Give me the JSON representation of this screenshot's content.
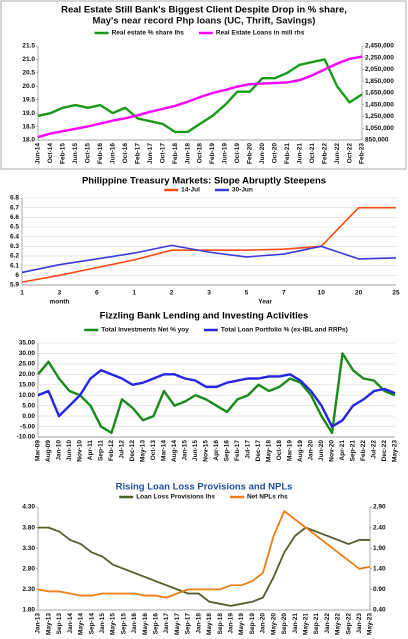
{
  "chart_data": [
    {
      "type": "line",
      "title": "Real Estate Still Bank's Biggest Client Despite Drop in % share,",
      "subtitle": "May's near record Php loans (UC, Thrift, Savings)",
      "categories": [
        "Jun-14",
        "Oct-14",
        "Feb-15",
        "Jun-15",
        "Oct-15",
        "Feb-16",
        "Jun-16",
        "Oct-16",
        "Feb-17",
        "Jun-17",
        "Oct-17",
        "Feb-18",
        "Jun-18",
        "Oct-18",
        "Feb-19",
        "Jun-19",
        "Oct-19",
        "Feb-20",
        "Jun-20",
        "Oct-20",
        "Feb-21",
        "Jun-21",
        "Oct-21",
        "Feb-22",
        "Jun-22",
        "Oct-22",
        "Feb-23"
      ],
      "series": [
        {
          "name": "Real estate % share lhs",
          "color": "#1a9a1a",
          "values": [
            18.9,
            19.0,
            19.2,
            19.3,
            19.2,
            19.3,
            19.0,
            19.2,
            18.8,
            18.7,
            18.6,
            18.3,
            18.3,
            18.6,
            18.9,
            19.3,
            19.8,
            19.8,
            20.3,
            20.3,
            20.5,
            20.8,
            20.9,
            21.0,
            20.0,
            19.4,
            19.7
          ]
        },
        {
          "name": "Real Estate Loans in mill rhs",
          "color": "#ff00ff",
          "axis": "y2",
          "values": [
            900000,
            960000,
            1000000,
            1040000,
            1080000,
            1130000,
            1180000,
            1220000,
            1270000,
            1330000,
            1380000,
            1430000,
            1500000,
            1580000,
            1650000,
            1700000,
            1760000,
            1800000,
            1810000,
            1820000,
            1830000,
            1870000,
            1950000,
            2050000,
            2150000,
            2230000,
            2270000
          ]
        }
      ],
      "ylim": [
        18,
        21.5
      ],
      "yticks": [
        {
          "value": 18,
          "label": "18.0"
        },
        {
          "value": 18.5,
          "label": "18.5"
        },
        {
          "value": 19,
          "label": "19.0"
        },
        {
          "value": 19.5,
          "label": "19.5"
        },
        {
          "value": 20,
          "label": "20.0"
        },
        {
          "value": 20.5,
          "label": "20.5"
        },
        {
          "value": 21,
          "label": "21.0"
        },
        {
          "value": 21.5,
          "label": "21.5"
        }
      ],
      "y2lim": [
        850000,
        2450000
      ],
      "y2ticks": [
        {
          "value": 850000,
          "label": "850,000"
        },
        {
          "value": 1050000,
          "label": "1,050,000"
        },
        {
          "value": 1250000,
          "label": "1,250,000"
        },
        {
          "value": 1450000,
          "label": "1,450,000"
        },
        {
          "value": 1650000,
          "label": "1,650,000"
        },
        {
          "value": 1850000,
          "label": "1,850,000"
        },
        {
          "value": 2050000,
          "label": "2,050,000"
        },
        {
          "value": 2250000,
          "label": "2,250,000"
        },
        {
          "value": 2450000,
          "label": "2,450,000"
        }
      ],
      "grid": false
    },
    {
      "type": "line",
      "title": "Philippine Treasury Markets: Slope Abruptly Steepens",
      "categories": [
        "1",
        "3",
        "6",
        "1",
        "2",
        "3",
        "5",
        "7",
        "10",
        "20",
        "25"
      ],
      "x_groups": [
        "month",
        "Year"
      ],
      "series": [
        {
          "name": "14-Jul",
          "color": "#ff4a12",
          "values": [
            5.93,
            6.0,
            6.08,
            6.16,
            6.26,
            6.26,
            6.26,
            6.27,
            6.3,
            6.7,
            6.7
          ]
        },
        {
          "name": "30-Jun",
          "color": "#3a3ad8",
          "values": [
            6.03,
            6.11,
            6.17,
            6.23,
            6.31,
            6.24,
            6.19,
            6.22,
            6.3,
            6.17,
            6.18
          ]
        }
      ],
      "ylim": [
        5.9,
        6.8
      ],
      "yticks": [
        5.9,
        6,
        6.1,
        6.2,
        6.3,
        6.4,
        6.5,
        6.6,
        6.7,
        6.8
      ],
      "grid": true
    },
    {
      "type": "line",
      "title": "Fizzling Bank Lending and Investing Activities",
      "categories": [
        "Mar-09",
        "Aug-09",
        "Jan-10",
        "Jun-10",
        "Nov-10",
        "Apr-11",
        "Sep-11",
        "Feb-12",
        "Jul-12",
        "Dec-12",
        "May-13",
        "Oct-13",
        "Mar-14",
        "Aug-14",
        "Jan-15",
        "Jun-15",
        "Nov-15",
        "Apr-16",
        "Sep-16",
        "Feb-17",
        "Jul-17",
        "Dec-17",
        "May-18",
        "Oct-18",
        "Mar-19",
        "Aug-19",
        "Jan-20",
        "Jun-20",
        "Nov-20",
        "Apr-21",
        "Sep-21",
        "Feb-22",
        "Jul-22",
        "Dec-22",
        "May-23"
      ],
      "series": [
        {
          "name": "Total Investments Net % yoy",
          "color": "#1a8a1a",
          "values": [
            20,
            26,
            18,
            12,
            10,
            5,
            -5,
            -8,
            8,
            4,
            -2,
            0,
            12,
            5,
            7,
            10,
            8,
            5,
            2,
            8,
            10,
            15,
            12,
            14,
            18,
            16,
            10,
            0,
            -8,
            30,
            22,
            18,
            17,
            12,
            10
          ]
        },
        {
          "name": "Total Loan Portfolio % (ex-IBL and RRPs)",
          "color": "#2626e0",
          "values": [
            10,
            12,
            0,
            5,
            10,
            18,
            22,
            20,
            18,
            15,
            16,
            18,
            20,
            20,
            18,
            17,
            14,
            14,
            16,
            17,
            18,
            18,
            19,
            19,
            20,
            17,
            12,
            5,
            -5,
            -2,
            5,
            8,
            12,
            13,
            11
          ]
        }
      ],
      "ylim": [
        -10,
        35
      ],
      "yticks": [
        {
          "value": -10,
          "label": "-10.00"
        },
        {
          "value": -5,
          "label": "-5.00"
        },
        {
          "value": 0,
          "label": "0.00"
        },
        {
          "value": 5,
          "label": "5.00"
        },
        {
          "value": 10,
          "label": "10.00"
        },
        {
          "value": 15,
          "label": "15.00"
        },
        {
          "value": 20,
          "label": "20.00"
        },
        {
          "value": 25,
          "label": "25.00"
        },
        {
          "value": 30,
          "label": "30.00"
        },
        {
          "value": 35,
          "label": "35.00"
        }
      ],
      "grid": true
    },
    {
      "type": "line",
      "title": "Rising Loan Loss Provisions and NPLs",
      "categories": [
        "Jan-13",
        "May-13",
        "Sep-13",
        "Jan-14",
        "May-14",
        "Sep-14",
        "Jan-15",
        "May-15",
        "Sep-15",
        "Jan-16",
        "May-16",
        "Sep-16",
        "Jan-17",
        "May-17",
        "Sep-17",
        "Jan-18",
        "May-18",
        "Sep-18",
        "Jan-19",
        "May-19",
        "Sep-19",
        "Jan-20",
        "May-20",
        "Sep-20",
        "Jan-21",
        "May-21",
        "Sep-21",
        "Jan-22",
        "May-22",
        "Sep-22",
        "Jan-23",
        "May-23"
      ],
      "series": [
        {
          "name": "Loan Loss Provisions lhs",
          "color": "#4f5f2a",
          "values": [
            3.8,
            3.8,
            3.7,
            3.5,
            3.4,
            3.2,
            3.1,
            2.9,
            2.8,
            2.7,
            2.6,
            2.5,
            2.4,
            2.3,
            2.2,
            2.2,
            2.0,
            1.95,
            1.9,
            1.95,
            2.0,
            2.1,
            2.6,
            3.2,
            3.6,
            3.8,
            3.7,
            3.6,
            3.5,
            3.4,
            3.5,
            3.5
          ]
        },
        {
          "name": "Net NPLs rhs",
          "color": "#ef7d17",
          "axis": "y2",
          "values": [
            0.9,
            0.85,
            0.85,
            0.8,
            0.75,
            0.75,
            0.8,
            0.8,
            0.8,
            0.8,
            0.75,
            0.75,
            0.7,
            0.8,
            0.9,
            0.9,
            0.9,
            0.9,
            1.0,
            1.0,
            1.1,
            1.3,
            2.2,
            2.8,
            2.6,
            2.4,
            2.2,
            2.0,
            1.8,
            1.6,
            1.4,
            1.45
          ]
        }
      ],
      "ylim": [
        1.8,
        4.3
      ],
      "yticks": [
        {
          "value": 1.8,
          "label": "1.80"
        },
        {
          "value": 2.3,
          "label": "2.30"
        },
        {
          "value": 2.8,
          "label": "2.80"
        },
        {
          "value": 3.3,
          "label": "3.30"
        },
        {
          "value": 3.8,
          "label": "3.80"
        },
        {
          "value": 4.3,
          "label": "4.30"
        }
      ],
      "y2lim": [
        0.4,
        2.9
      ],
      "y2ticks": [
        {
          "value": 0.4,
          "label": "0.40"
        },
        {
          "value": 0.9,
          "label": "0.90"
        },
        {
          "value": 1.4,
          "label": "1.40"
        },
        {
          "value": 1.9,
          "label": "1.90"
        },
        {
          "value": 2.4,
          "label": "2.40"
        },
        {
          "value": 2.9,
          "label": "2.90"
        }
      ],
      "grid": false
    }
  ]
}
